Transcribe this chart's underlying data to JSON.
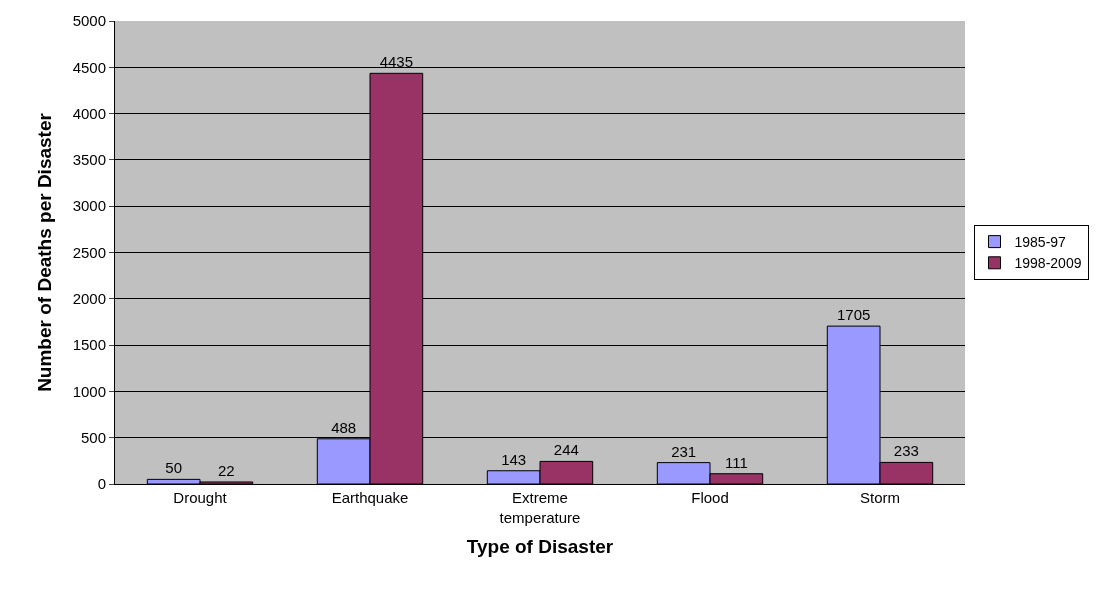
{
  "chart_data": {
    "type": "bar",
    "xlabel": "Type of Disaster",
    "ylabel": "Number of Deaths per Disaster",
    "categories": [
      "Drought",
      "Earthquake",
      "Extreme temperature",
      "Flood",
      "Storm"
    ],
    "series": [
      {
        "name": "1985-97",
        "color": "#9999ff",
        "values": [
          50,
          488,
          143,
          231,
          1705
        ]
      },
      {
        "name": "1998-2009",
        "color": "#993366",
        "values": [
          22,
          4435,
          244,
          111,
          233
        ]
      }
    ],
    "ylim": [
      0,
      5000
    ],
    "yticks": [
      0,
      500,
      1000,
      1500,
      2000,
      2500,
      3000,
      3500,
      4000,
      4500,
      5000
    ],
    "grid": "y",
    "legend": "right",
    "data_labels": true
  }
}
